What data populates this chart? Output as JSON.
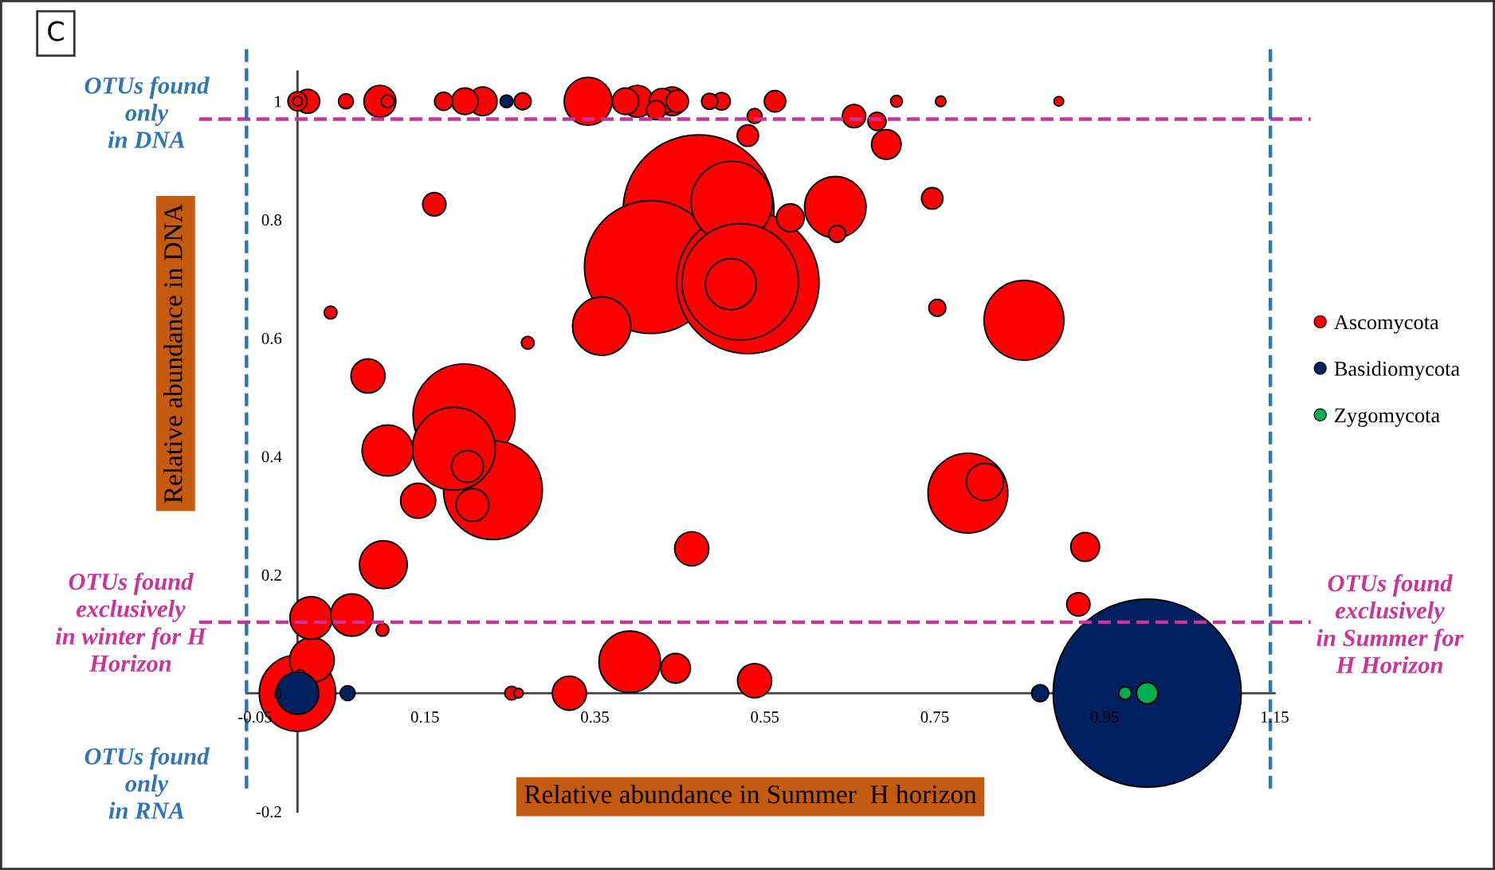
{
  "chart_data": {
    "type": "bubble",
    "title": "C",
    "xlabel": "Relative abundance in Summer  H horizon",
    "ylabel": "Relative abundance in DNA",
    "xlim": [
      -0.06,
      1.15
    ],
    "ylim": [
      -0.2,
      1.05
    ],
    "xticks": [
      -0.05,
      0.15,
      0.35,
      0.55,
      0.75,
      0.95,
      1.15
    ],
    "yticks": [
      -0.2,
      0,
      0.2,
      0.4,
      0.6,
      0.8,
      1
    ],
    "legend": "right",
    "marker": "circle",
    "series": [
      {
        "name": "Ascomycota",
        "color": "#ff0000",
        "x": [
          0.472,
          0.416,
          0.53,
          0.511,
          0.521,
          0.51,
          0.196,
          0.23,
          0.184,
          0.855,
          0.789,
          0,
          0.633,
          0.391,
          0.358,
          0.106,
          0.342,
          0.101,
          0.017,
          0.016,
          0.064,
          0.809,
          0.142,
          0.083,
          0.464,
          0.32,
          0.538,
          0.206,
          0.097,
          0.4,
          0.2,
          0.693,
          0.445,
          0.218,
          0.441,
          0.927,
          0.58,
          0.197,
          0.386,
          0.429,
          0.012,
          0.161,
          0.655,
          0.919,
          0.447,
          0.562,
          0.53,
          0.747,
          0,
          0.422,
          0.172,
          0.682,
          0.499,
          0.265,
          0.635,
          0.753,
          0.485,
          0.057,
          0.538,
          0.252,
          0.106,
          0.039,
          0.271,
          0.1,
          0.705,
          0.757,
          0.003,
          0,
          0.896,
          0.26
        ],
        "values": [
          0.816,
          0.72,
          0.694,
          0.83,
          0.695,
          0.691,
          0.47,
          0.343,
          0.413,
          0.63,
          0.338,
          0,
          0.821,
          0.053,
          0.62,
          0.41,
          1,
          0.217,
          0.056,
          0.127,
          0.132,
          0.357,
          0.325,
          0.536,
          0.244,
          0,
          0.021,
          0.318,
          1,
          1,
          0.383,
          0.927,
          0.042,
          1,
          1,
          0.247,
          0.803,
          1,
          1,
          1,
          1,
          0.826,
          0.975,
          0.15,
          1,
          1,
          0.942,
          0.836,
          1,
          0.985,
          1,
          0.966,
          1,
          1,
          0.776,
          0.651,
          1,
          1,
          0.975,
          0,
          1,
          0.643,
          0.592,
          0.107,
          1,
          1,
          0.031,
          1,
          1,
          0
        ],
        "sizes": [
          0.643,
          0.5,
          0.574,
          0.187,
          0.383,
          0.0735,
          0.294,
          0.276,
          0.194,
          0.18,
          0.18,
          0.165,
          0.107,
          0.107,
          0.0962,
          0.0735,
          0.0646,
          0.0646,
          0.0563,
          0.0508,
          0.0508,
          0.0393,
          0.0348,
          0.0329,
          0.0329,
          0.0329,
          0.0329,
          0.0305,
          0.0287,
          0.0287,
          0.0287,
          0.0248,
          0.0248,
          0.0233,
          0.0233,
          0.0233,
          0.0217,
          0.0198,
          0.0198,
          0.0184,
          0.0162,
          0.0153,
          0.0153,
          0.0153,
          0.0141,
          0.0129,
          0.0129,
          0.0129,
          0.0103,
          0.0103,
          0.0093,
          0.0093,
          0.0087,
          0.0081,
          0.0081,
          0.0081,
          0.0072,
          0.0063,
          0.0063,
          0.0053,
          0.0046,
          0.0046,
          0.0046,
          0.0046,
          0.0039,
          0.0031,
          0.0031,
          0.0026,
          0.0026,
          0.0026
        ]
      },
      {
        "name": "Basidiomycota",
        "color": "#002060",
        "x": [
          1.0,
          0,
          0.874,
          0.059,
          0.246
        ],
        "values": [
          0,
          0,
          0,
          0,
          1
        ],
        "sizes": [
          1,
          0.0508,
          0.0081,
          0.0063,
          0.0046
        ]
      },
      {
        "name": "Zygomycota",
        "color": "#00b050",
        "x": [
          1.0,
          0.974
        ],
        "values": [
          0,
          0
        ],
        "sizes": [
          0.0129,
          0.0046
        ]
      }
    ],
    "ref_lines": [
      {
        "axis": "y",
        "value": 0.97,
        "color": "#cc3399",
        "line_style": "dashed"
      },
      {
        "axis": "y",
        "value": 0.12,
        "color": "#cc3399",
        "line_style": "dashed"
      },
      {
        "axis": "x",
        "value": -0.06,
        "color": "#2e75b6",
        "line_style": "dashed"
      },
      {
        "axis": "x",
        "value": 1.145,
        "color": "#2e75b6",
        "line_style": "dashed"
      }
    ],
    "annotations": [
      "OTUs found\nonly\nin DNA",
      "OTUs found\nexclusively\nin winter for H\nHorizon",
      "OTUs found\nonly\nin RNA",
      "OTUs found\nexclusively\nin Summer for\nH Horizon"
    ]
  }
}
